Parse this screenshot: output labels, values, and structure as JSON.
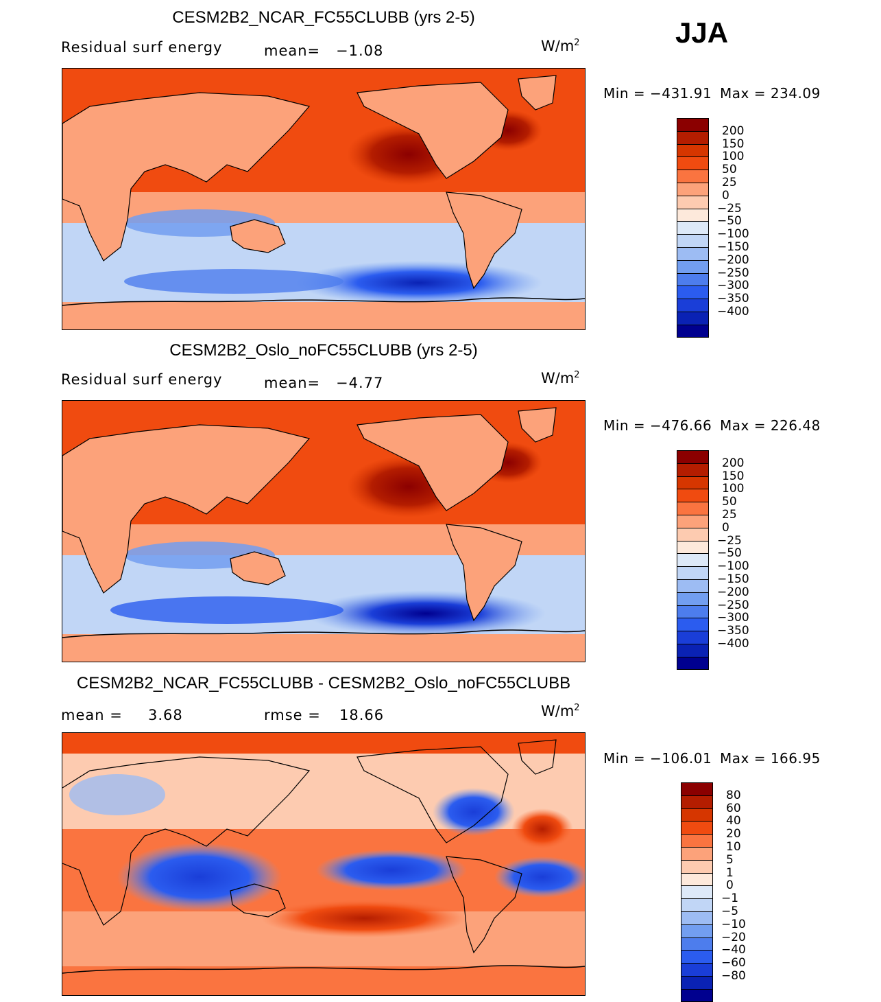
{
  "season": "JJA",
  "units_base": "W/m",
  "units_exp": "2",
  "panels": [
    {
      "title": "CESM2B2_NCAR_FC55CLUBB (yrs 2-5)",
      "left_label": "Residual surf energy",
      "mid_label": "mean=",
      "mid_value": "−1.08",
      "min_text": "Min = −431.91",
      "max_text": "Max = 234.09",
      "colorbar": {
        "colors": [
          "#8b0000",
          "#b41d00",
          "#d63600",
          "#f04b10",
          "#fa7440",
          "#fca27a",
          "#fdcbb0",
          "#fde9db",
          "#dde9f8",
          "#c1d6f6",
          "#9dbcf3",
          "#729ef0",
          "#4d7ded",
          "#2b5cef",
          "#1a3ed8",
          "#0a22b4",
          "#00008f"
        ],
        "labels": [
          "200",
          "150",
          "100",
          "50",
          "25",
          "0",
          "−25",
          "−50",
          "−100",
          "−150",
          "−200",
          "−250",
          "−300",
          "−350",
          "−400"
        ]
      }
    },
    {
      "title": "CESM2B2_Oslo_noFC55CLUBB (yrs 2-5)",
      "left_label": "Residual surf energy",
      "mid_label": "mean=",
      "mid_value": "−4.77",
      "min_text": "Min = −476.66",
      "max_text": "Max = 226.48",
      "colorbar": {
        "colors": [
          "#8b0000",
          "#b41d00",
          "#d63600",
          "#f04b10",
          "#fa7440",
          "#fca27a",
          "#fdcbb0",
          "#fde9db",
          "#dde9f8",
          "#c1d6f6",
          "#9dbcf3",
          "#729ef0",
          "#4d7ded",
          "#2b5cef",
          "#1a3ed8",
          "#0a22b4",
          "#00008f"
        ],
        "labels": [
          "200",
          "150",
          "100",
          "50",
          "25",
          "0",
          "−25",
          "−50",
          "−100",
          "−150",
          "−200",
          "−250",
          "−300",
          "−350",
          "−400"
        ]
      }
    },
    {
      "title": "CESM2B2_NCAR_FC55CLUBB - CESM2B2_Oslo_noFC55CLUBB",
      "left_label": "mean =",
      "left_value": "3.68",
      "mid_label": "rmse =",
      "mid_value": "18.66",
      "min_text": "Min = −106.01",
      "max_text": "Max = 166.95",
      "colorbar": {
        "colors": [
          "#8b0000",
          "#b41d00",
          "#d63600",
          "#f04b10",
          "#fa7440",
          "#fca27a",
          "#fdcbb0",
          "#fde9db",
          "#dde9f8",
          "#c1d6f6",
          "#9dbcf3",
          "#729ef0",
          "#4d7ded",
          "#2b5cef",
          "#1a3ed8",
          "#0a22b4",
          "#00008f"
        ],
        "labels": [
          "80",
          "60",
          "40",
          "20",
          "10",
          "5",
          "1",
          "0",
          "−1",
          "−5",
          "−10",
          "−20",
          "−40",
          "−60",
          "−80"
        ]
      }
    }
  ]
}
